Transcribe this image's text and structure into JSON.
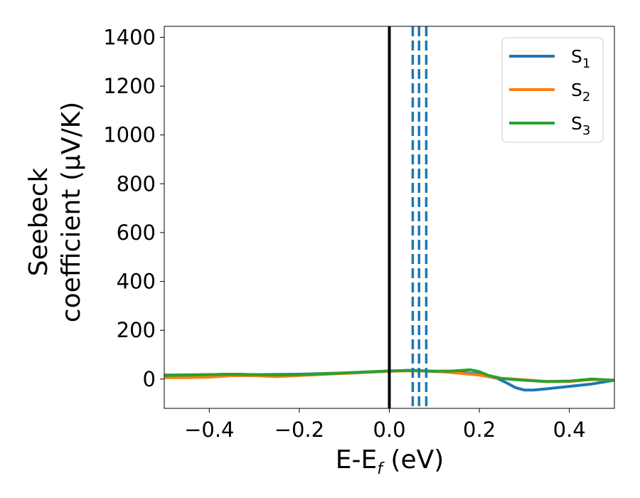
{
  "chart_data": {
    "type": "line",
    "xlabel_main": "E-E",
    "xlabel_sub": "f",
    "xlabel_unit": " (eV)",
    "ylabel_line1": "Seebeck",
    "ylabel_line2": "coefficient  (μV/K)",
    "xlim": [
      -0.5,
      0.5
    ],
    "ylim": [
      -120,
      1445
    ],
    "xticks": [
      -0.4,
      -0.2,
      0.0,
      0.2,
      0.4
    ],
    "xtick_labels": [
      "−0.4",
      "−0.2",
      "0.0",
      "0.2",
      "0.4"
    ],
    "yticks": [
      0,
      200,
      400,
      600,
      800,
      1000,
      1200,
      1400
    ],
    "ytick_labels": [
      "0",
      "200",
      "400",
      "600",
      "800",
      "1000",
      "1200",
      "1400"
    ],
    "grid": false,
    "legend_position": "top-right",
    "colors": {
      "S1": "#1f77b4",
      "S2": "#ff7f0e",
      "S3": "#2ca02c",
      "fermi": "#000000"
    },
    "series": [
      {
        "id": "S1",
        "name_main": "S",
        "name_sub": "1",
        "x": [
          -0.5,
          -0.4,
          -0.35,
          -0.3,
          -0.2,
          -0.1,
          0.0,
          0.05,
          0.1,
          0.15,
          0.2,
          0.22,
          0.24,
          0.26,
          0.28,
          0.3,
          0.32,
          0.35,
          0.4,
          0.45,
          0.5
        ],
        "y": [
          16,
          18,
          20,
          18,
          20,
          25,
          33,
          36,
          31,
          29,
          20,
          10,
          3,
          -15,
          -35,
          -45,
          -45,
          -40,
          -30,
          -20,
          -5
        ]
      },
      {
        "id": "S2",
        "name_main": "S",
        "name_sub": "2",
        "x": [
          -0.5,
          -0.45,
          -0.4,
          -0.35,
          -0.3,
          -0.25,
          -0.2,
          -0.1,
          0.0,
          0.05,
          0.1,
          0.15,
          0.2,
          0.22,
          0.25,
          0.3,
          0.35,
          0.4,
          0.45,
          0.5
        ],
        "y": [
          6,
          6,
          8,
          14,
          14,
          10,
          15,
          23,
          32,
          34,
          32,
          25,
          16,
          10,
          3,
          -3,
          -10,
          -10,
          -2,
          -5
        ]
      },
      {
        "id": "S3",
        "name_main": "S",
        "name_sub": "3",
        "x": [
          -0.5,
          -0.45,
          -0.4,
          -0.35,
          -0.3,
          -0.25,
          -0.2,
          -0.1,
          0.0,
          0.05,
          0.1,
          0.14,
          0.18,
          0.2,
          0.22,
          0.25,
          0.3,
          0.35,
          0.4,
          0.45,
          0.5
        ],
        "y": [
          15,
          16,
          18,
          20,
          18,
          17,
          18,
          25,
          33,
          36,
          32,
          33,
          38,
          30,
          15,
          2,
          -5,
          -10,
          -8,
          0,
          -5
        ]
      }
    ],
    "vlines": [
      {
        "x": 0.0,
        "style": "solid",
        "color": "#000000"
      },
      {
        "x": 0.052,
        "style": "dashed",
        "color": "#1f77b4"
      },
      {
        "x": 0.066,
        "style": "dashed",
        "color": "#1f77b4"
      },
      {
        "x": 0.082,
        "style": "dashed",
        "color": "#1f77b4"
      }
    ]
  }
}
